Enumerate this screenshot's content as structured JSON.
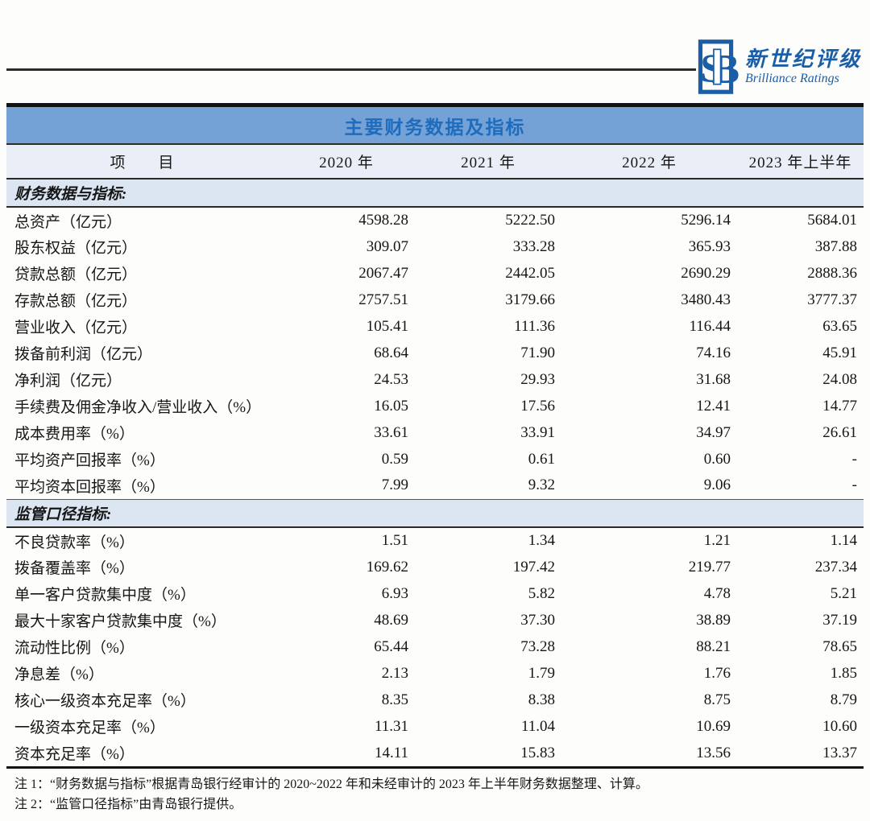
{
  "colors": {
    "brand": "#1b5ea8",
    "title_bg": "#74a1d6",
    "title_text": "#1d6cbe",
    "header_bg": "#eaeef6",
    "section_bg": "#dbe6f2"
  },
  "brand": {
    "monogram": "SB",
    "name_cn": "新世纪评级",
    "name_en": "Brilliance Ratings"
  },
  "table": {
    "title": "主要财务数据及指标",
    "columns": [
      "项　　目",
      "2020 年",
      "2021 年",
      "2022 年",
      "2023 年上半年"
    ],
    "sections": [
      {
        "header": "财务数据与指标:",
        "rows": [
          {
            "label": "总资产（亿元）",
            "values": [
              "4598.28",
              "5222.50",
              "5296.14",
              "5684.01"
            ]
          },
          {
            "label": "股东权益（亿元）",
            "values": [
              "309.07",
              "333.28",
              "365.93",
              "387.88"
            ]
          },
          {
            "label": "贷款总额（亿元）",
            "values": [
              "2067.47",
              "2442.05",
              "2690.29",
              "2888.36"
            ]
          },
          {
            "label": "存款总额（亿元）",
            "values": [
              "2757.51",
              "3179.66",
              "3480.43",
              "3777.37"
            ]
          },
          {
            "label": "营业收入（亿元）",
            "values": [
              "105.41",
              "111.36",
              "116.44",
              "63.65"
            ]
          },
          {
            "label": "拨备前利润（亿元）",
            "values": [
              "68.64",
              "71.90",
              "74.16",
              "45.91"
            ]
          },
          {
            "label": "净利润（亿元）",
            "values": [
              "24.53",
              "29.93",
              "31.68",
              "24.08"
            ]
          },
          {
            "label": "手续费及佣金净收入/营业收入（%）",
            "values": [
              "16.05",
              "17.56",
              "12.41",
              "14.77"
            ]
          },
          {
            "label": "成本费用率（%）",
            "values": [
              "33.61",
              "33.91",
              "34.97",
              "26.61"
            ]
          },
          {
            "label": "平均资产回报率（%）",
            "values": [
              "0.59",
              "0.61",
              "0.60",
              "-"
            ]
          },
          {
            "label": "平均资本回报率（%）",
            "values": [
              "7.99",
              "9.32",
              "9.06",
              "-"
            ]
          }
        ]
      },
      {
        "header": "监管口径指标:",
        "rows": [
          {
            "label": "不良贷款率（%）",
            "values": [
              "1.51",
              "1.34",
              "1.21",
              "1.14"
            ]
          },
          {
            "label": "拨备覆盖率（%）",
            "values": [
              "169.62",
              "197.42",
              "219.77",
              "237.34"
            ]
          },
          {
            "label": "单一客户贷款集中度（%）",
            "values": [
              "6.93",
              "5.82",
              "4.78",
              "5.21"
            ]
          },
          {
            "label": "最大十家客户贷款集中度（%）",
            "values": [
              "48.69",
              "37.30",
              "38.89",
              "37.19"
            ]
          },
          {
            "label": "流动性比例（%）",
            "values": [
              "65.44",
              "73.28",
              "88.21",
              "78.65"
            ]
          },
          {
            "label": "净息差（%）",
            "values": [
              "2.13",
              "1.79",
              "1.76",
              "1.85"
            ]
          },
          {
            "label": "核心一级资本充足率（%）",
            "values": [
              "8.35",
              "8.38",
              "8.75",
              "8.79"
            ]
          },
          {
            "label": "一级资本充足率（%）",
            "values": [
              "11.31",
              "11.04",
              "10.69",
              "10.60"
            ]
          },
          {
            "label": "资本充足率（%）",
            "values": [
              "14.11",
              "15.83",
              "13.56",
              "13.37"
            ]
          }
        ]
      }
    ]
  },
  "notes": [
    "注 1：“财务数据与指标”根据青岛银行经审计的 2020~2022 年和未经审计的 2023 年上半年财务数据整理、计算。",
    "注 2：“监管口径指标”由青岛银行提供。"
  ]
}
